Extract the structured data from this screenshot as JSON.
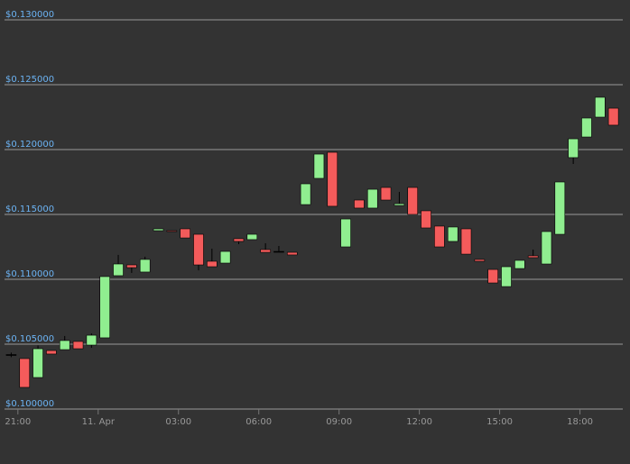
{
  "chart_data": {
    "type": "candlestick",
    "x": [
      20.75,
      21.25,
      21.75,
      22.25,
      22.75,
      23.25,
      23.75,
      24.25,
      24.75,
      25.25,
      25.75,
      26.25,
      26.75,
      27.25,
      27.75,
      28.25,
      28.75,
      29.25,
      29.75,
      30.25,
      30.75,
      31.25,
      31.75,
      32.25,
      32.75,
      33.25,
      33.75,
      34.25,
      34.75,
      35.25,
      35.75,
      36.25,
      36.75,
      37.25,
      37.75,
      38.25,
      38.75,
      39.25,
      39.75,
      40.25,
      40.75,
      41.25,
      41.75,
      42.25,
      42.75,
      43.25
    ],
    "open": [
      0.1042,
      0.10389,
      0.10243,
      0.10451,
      0.10458,
      0.10521,
      0.10493,
      0.10549,
      0.11028,
      0.11111,
      0.11056,
      0.11375,
      0.11375,
      0.11389,
      0.11347,
      0.11139,
      0.11125,
      0.11313,
      0.11306,
      0.11229,
      0.11215,
      0.11208,
      0.11576,
      0.11778,
      0.11979,
      0.1125,
      0.11611,
      0.11549,
      0.11708,
      0.11569,
      0.11708,
      0.11528,
      0.1141,
      0.11292,
      0.11389,
      0.11153,
      0.11076,
      0.10944,
      0.11083,
      0.11181,
      0.11118,
      0.11347,
      0.11938,
      0.12097,
      0.1225,
      0.12319
    ],
    "high": [
      0.10435,
      0.10389,
      0.1049,
      0.10451,
      0.10563,
      0.10521,
      0.10583,
      0.11021,
      0.11188,
      0.11111,
      0.11174,
      0.11389,
      0.11375,
      0.11389,
      0.11347,
      0.11236,
      0.11215,
      0.11313,
      0.11347,
      0.11278,
      0.11257,
      0.11208,
      0.11736,
      0.11965,
      0.11979,
      0.11465,
      0.11611,
      0.11694,
      0.11708,
      0.11674,
      0.11708,
      0.11528,
      0.1141,
      0.11403,
      0.11389,
      0.11153,
      0.11076,
      0.11097,
      0.11146,
      0.11229,
      0.11368,
      0.1175,
      0.12083,
      0.12243,
      0.12403,
      0.12319
    ],
    "low": [
      0.104,
      0.10167,
      0.10243,
      0.10424,
      0.10458,
      0.10465,
      0.10472,
      0.10549,
      0.11028,
      0.11049,
      0.11056,
      0.11375,
      0.11368,
      0.11319,
      0.11069,
      0.11097,
      0.11125,
      0.11271,
      0.11306,
      0.11208,
      0.11215,
      0.11188,
      0.11576,
      0.11778,
      0.11563,
      0.1125,
      0.11549,
      0.11549,
      0.11611,
      0.11569,
      0.115,
      0.11396,
      0.1125,
      0.11292,
      0.11194,
      0.11139,
      0.10972,
      0.10944,
      0.11083,
      0.11167,
      0.11118,
      0.11347,
      0.11889,
      0.12097,
      0.1225,
      0.12188
    ],
    "close": [
      0.1042,
      0.10167,
      0.10465,
      0.10424,
      0.10528,
      0.10465,
      0.10569,
      0.11021,
      0.11118,
      0.1109,
      0.11153,
      0.11389,
      0.11368,
      0.11319,
      0.11111,
      0.11097,
      0.11215,
      0.11292,
      0.11347,
      0.11208,
      0.11215,
      0.11188,
      0.11736,
      0.11965,
      0.11563,
      0.11465,
      0.11549,
      0.11694,
      0.11611,
      0.11583,
      0.115,
      0.11396,
      0.1125,
      0.11403,
      0.11194,
      0.11139,
      0.10972,
      0.11097,
      0.11146,
      0.11167,
      0.11368,
      0.1175,
      0.12083,
      0.12243,
      0.12403,
      0.12188
    ],
    "up_color": "#90ee90",
    "down_color": "#f45b5b",
    "wick_color": "#000000",
    "xlim": [
      20.5,
      43.6
    ],
    "xticks": [
      {
        "value": 21,
        "label": "21:00"
      },
      {
        "value": 24,
        "label": "11. Apr"
      },
      {
        "value": 27,
        "label": "03:00"
      },
      {
        "value": 30,
        "label": "06:00"
      },
      {
        "value": 33,
        "label": "09:00"
      },
      {
        "value": 36,
        "label": "12:00"
      },
      {
        "value": 39,
        "label": "15:00"
      },
      {
        "value": 42,
        "label": "18:00"
      }
    ],
    "ylim": [
      0.1,
      0.1305
    ],
    "yticks": [
      {
        "value": 0.1,
        "label": "$0.100000"
      },
      {
        "value": 0.105,
        "label": "$0.105000"
      },
      {
        "value": 0.11,
        "label": "$0.110000"
      },
      {
        "value": 0.115,
        "label": "$0.115000"
      },
      {
        "value": 0.12,
        "label": "$0.120000"
      },
      {
        "value": 0.125,
        "label": "$0.125000"
      },
      {
        "value": 0.13,
        "label": "$0.130000"
      }
    ],
    "grid": true
  }
}
